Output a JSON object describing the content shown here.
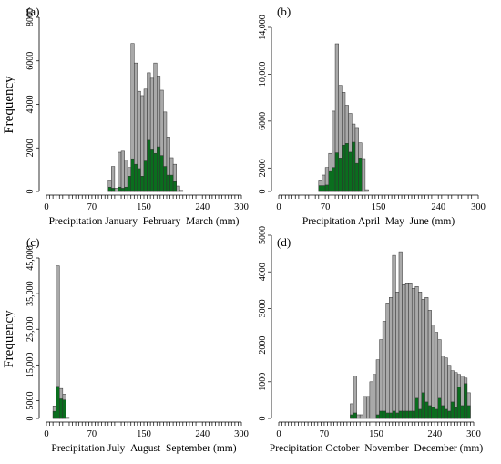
{
  "colors": {
    "total": "#a9a9a9",
    "subset": "#0a6e1e",
    "edge": "#303030"
  },
  "chart_data": [
    {
      "type": "bar",
      "panel": "(a)",
      "xlabel": "Precipitation January–February–March (mm)",
      "ylabel": "Frequency",
      "xlim": [
        0,
        300
      ],
      "xticks": [
        0,
        70,
        150,
        240,
        300
      ],
      "ylim": [
        0,
        8000
      ],
      "yticks": [
        0,
        2000,
        4000,
        6000,
        8000
      ],
      "ytick_labels": [
        "0",
        "2000",
        "4000",
        "6000",
        "8000"
      ],
      "bin_width": 5,
      "total": [
        {
          "x": 95,
          "v": 500
        },
        {
          "x": 100,
          "v": 1150
        },
        {
          "x": 105,
          "v": 150
        },
        {
          "x": 110,
          "v": 1800
        },
        {
          "x": 115,
          "v": 1850
        },
        {
          "x": 120,
          "v": 1450
        },
        {
          "x": 125,
          "v": 1100
        },
        {
          "x": 130,
          "v": 6800
        },
        {
          "x": 135,
          "v": 5900
        },
        {
          "x": 140,
          "v": 4600
        },
        {
          "x": 145,
          "v": 4400
        },
        {
          "x": 150,
          "v": 4700
        },
        {
          "x": 155,
          "v": 5450
        },
        {
          "x": 160,
          "v": 5200
        },
        {
          "x": 165,
          "v": 5900
        },
        {
          "x": 170,
          "v": 5300
        },
        {
          "x": 175,
          "v": 4650
        },
        {
          "x": 180,
          "v": 3650
        },
        {
          "x": 185,
          "v": 2500
        },
        {
          "x": 190,
          "v": 1550
        },
        {
          "x": 195,
          "v": 1250
        },
        {
          "x": 200,
          "v": 250
        },
        {
          "x": 205,
          "v": 50
        }
      ],
      "subset": [
        {
          "x": 95,
          "v": 200
        },
        {
          "x": 100,
          "v": 150
        },
        {
          "x": 110,
          "v": 200
        },
        {
          "x": 115,
          "v": 150
        },
        {
          "x": 120,
          "v": 200
        },
        {
          "x": 125,
          "v": 700
        },
        {
          "x": 130,
          "v": 1500
        },
        {
          "x": 135,
          "v": 1250
        },
        {
          "x": 140,
          "v": 1050
        },
        {
          "x": 145,
          "v": 700
        },
        {
          "x": 150,
          "v": 1400
        },
        {
          "x": 155,
          "v": 2350
        },
        {
          "x": 160,
          "v": 1950
        },
        {
          "x": 165,
          "v": 1750
        },
        {
          "x": 170,
          "v": 2050
        },
        {
          "x": 175,
          "v": 1650
        },
        {
          "x": 180,
          "v": 1150
        },
        {
          "x": 185,
          "v": 750
        },
        {
          "x": 190,
          "v": 750
        },
        {
          "x": 195,
          "v": 450
        }
      ]
    },
    {
      "type": "bar",
      "panel": "(b)",
      "xlabel": "Precipitation April–May–June (mm)",
      "ylabel": "",
      "xlim": [
        0,
        300
      ],
      "xticks": [
        0,
        70,
        150,
        240,
        300
      ],
      "ylim": [
        0,
        14000
      ],
      "yticks": [
        0,
        2000,
        6000,
        10000,
        14000
      ],
      "ytick_labels": [
        "0",
        "2000",
        "6000",
        "10,000",
        "14,000"
      ],
      "bin_width": 5,
      "total": [
        {
          "x": 60,
          "v": 900
        },
        {
          "x": 65,
          "v": 1400
        },
        {
          "x": 70,
          "v": 2050
        },
        {
          "x": 75,
          "v": 3250
        },
        {
          "x": 80,
          "v": 6850
        },
        {
          "x": 85,
          "v": 12600
        },
        {
          "x": 90,
          "v": 9050
        },
        {
          "x": 95,
          "v": 8450
        },
        {
          "x": 100,
          "v": 7350
        },
        {
          "x": 105,
          "v": 6650
        },
        {
          "x": 110,
          "v": 5750
        },
        {
          "x": 115,
          "v": 5450
        },
        {
          "x": 120,
          "v": 4150
        },
        {
          "x": 125,
          "v": 2800
        },
        {
          "x": 130,
          "v": 150
        }
      ],
      "subset": [
        {
          "x": 60,
          "v": 500
        },
        {
          "x": 65,
          "v": 500
        },
        {
          "x": 70,
          "v": 550
        },
        {
          "x": 75,
          "v": 1700
        },
        {
          "x": 80,
          "v": 2050
        },
        {
          "x": 85,
          "v": 3300
        },
        {
          "x": 90,
          "v": 2850
        },
        {
          "x": 95,
          "v": 3950
        },
        {
          "x": 100,
          "v": 4100
        },
        {
          "x": 105,
          "v": 3350
        },
        {
          "x": 110,
          "v": 4200
        },
        {
          "x": 115,
          "v": 2400
        },
        {
          "x": 120,
          "v": 2850
        }
      ]
    },
    {
      "type": "bar",
      "panel": "(c)",
      "xlabel": "Precipitation July–August–September (mm)",
      "ylabel": "Frequency",
      "xlim": [
        0,
        300
      ],
      "xticks": [
        0,
        70,
        150,
        240,
        300
      ],
      "ylim": [
        0,
        45000
      ],
      "yticks": [
        0,
        5000,
        15000,
        25000,
        35000,
        45000
      ],
      "ytick_labels": [
        "0",
        "5000",
        "15,000",
        "25,000",
        "35,000",
        "45,000"
      ],
      "bin_width": 5,
      "total": [
        {
          "x": 10,
          "v": 3500
        },
        {
          "x": 15,
          "v": 42800
        },
        {
          "x": 20,
          "v": 8400
        },
        {
          "x": 25,
          "v": 6800
        },
        {
          "x": 30,
          "v": 300
        }
      ],
      "subset": [
        {
          "x": 10,
          "v": 2000
        },
        {
          "x": 15,
          "v": 9000
        },
        {
          "x": 20,
          "v": 5500
        },
        {
          "x": 25,
          "v": 5200
        }
      ]
    },
    {
      "type": "bar",
      "panel": "(d)",
      "xlabel": "Precipitation October–November–December (mm)",
      "ylabel": "",
      "xlim": [
        0,
        300
      ],
      "xticks": [
        0,
        70,
        150,
        240,
        300
      ],
      "ylim": [
        0,
        5000
      ],
      "yticks": [
        0,
        1000,
        2000,
        3000,
        4000,
        5000
      ],
      "ytick_labels": [
        "0",
        "1000",
        "2000",
        "3000",
        "4000",
        "5000"
      ],
      "bin_width": 5,
      "total": [
        {
          "x": 110,
          "v": 400
        },
        {
          "x": 115,
          "v": 1150
        },
        {
          "x": 120,
          "v": 100
        },
        {
          "x": 125,
          "v": 100
        },
        {
          "x": 130,
          "v": 600
        },
        {
          "x": 135,
          "v": 600
        },
        {
          "x": 140,
          "v": 1000
        },
        {
          "x": 145,
          "v": 1200
        },
        {
          "x": 150,
          "v": 1600
        },
        {
          "x": 155,
          "v": 2150
        },
        {
          "x": 160,
          "v": 2650
        },
        {
          "x": 165,
          "v": 3150
        },
        {
          "x": 170,
          "v": 3300
        },
        {
          "x": 175,
          "v": 4450
        },
        {
          "x": 180,
          "v": 3450
        },
        {
          "x": 185,
          "v": 4550
        },
        {
          "x": 190,
          "v": 3650
        },
        {
          "x": 195,
          "v": 3700
        },
        {
          "x": 200,
          "v": 3700
        },
        {
          "x": 205,
          "v": 3550
        },
        {
          "x": 210,
          "v": 3600
        },
        {
          "x": 215,
          "v": 3450
        },
        {
          "x": 220,
          "v": 3250
        },
        {
          "x": 225,
          "v": 3300
        },
        {
          "x": 230,
          "v": 2950
        },
        {
          "x": 235,
          "v": 2550
        },
        {
          "x": 240,
          "v": 2350
        },
        {
          "x": 245,
          "v": 2150
        },
        {
          "x": 250,
          "v": 1700
        },
        {
          "x": 255,
          "v": 1650
        },
        {
          "x": 260,
          "v": 1450
        },
        {
          "x": 265,
          "v": 1300
        },
        {
          "x": 270,
          "v": 1250
        },
        {
          "x": 275,
          "v": 1200
        },
        {
          "x": 280,
          "v": 1150
        },
        {
          "x": 285,
          "v": 1100
        },
        {
          "x": 290,
          "v": 700
        }
      ],
      "subset": [
        {
          "x": 110,
          "v": 100
        },
        {
          "x": 115,
          "v": 150
        },
        {
          "x": 150,
          "v": 100
        },
        {
          "x": 155,
          "v": 200
        },
        {
          "x": 160,
          "v": 200
        },
        {
          "x": 165,
          "v": 150
        },
        {
          "x": 170,
          "v": 150
        },
        {
          "x": 175,
          "v": 200
        },
        {
          "x": 180,
          "v": 150
        },
        {
          "x": 185,
          "v": 200
        },
        {
          "x": 190,
          "v": 200
        },
        {
          "x": 195,
          "v": 200
        },
        {
          "x": 200,
          "v": 200
        },
        {
          "x": 205,
          "v": 200
        },
        {
          "x": 210,
          "v": 550
        },
        {
          "x": 215,
          "v": 250
        },
        {
          "x": 220,
          "v": 700
        },
        {
          "x": 225,
          "v": 450
        },
        {
          "x": 230,
          "v": 350
        },
        {
          "x": 235,
          "v": 300
        },
        {
          "x": 240,
          "v": 250
        },
        {
          "x": 245,
          "v": 550
        },
        {
          "x": 250,
          "v": 350
        },
        {
          "x": 255,
          "v": 250
        },
        {
          "x": 260,
          "v": 200
        },
        {
          "x": 265,
          "v": 450
        },
        {
          "x": 270,
          "v": 300
        },
        {
          "x": 275,
          "v": 850
        },
        {
          "x": 280,
          "v": 350
        },
        {
          "x": 285,
          "v": 950
        },
        {
          "x": 290,
          "v": 350
        }
      ]
    }
  ]
}
